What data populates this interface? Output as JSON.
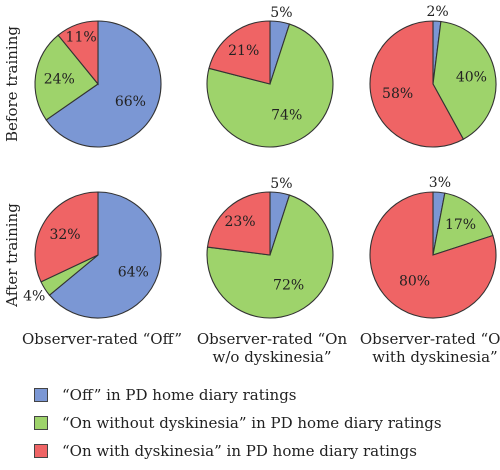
{
  "colors": {
    "off": "#7B97D4",
    "on_without": "#9ED36B",
    "on_with": "#EF6465",
    "stroke": "#333333"
  },
  "row_labels": [
    "Before training",
    "After training"
  ],
  "column_labels": [
    [
      "Observer-rated “Off”"
    ],
    [
      "Observer-rated “On",
      "w/o dyskinesia”"
    ],
    [
      "Observer-rated “On",
      "with dyskinesia”"
    ]
  ],
  "legend": [
    {
      "key": "off",
      "label": "“Off” in PD home diary ratings"
    },
    {
      "key": "on_without",
      "label": "“On without dyskinesia” in PD home diary ratings"
    },
    {
      "key": "on_with",
      "label": "“On with dyskinesia” in PD home diary ratings"
    }
  ],
  "chart_data": [
    {
      "type": "pie",
      "row": "Before training",
      "column": "Observer-rated “Off”",
      "slices": [
        {
          "key": "off",
          "value": 66,
          "label": "66%"
        },
        {
          "key": "on_without",
          "value": 24,
          "label": "24%"
        },
        {
          "key": "on_with",
          "value": 11,
          "label": "11%"
        }
      ]
    },
    {
      "type": "pie",
      "row": "Before training",
      "column": "Observer-rated “On w/o dyskinesia”",
      "slices": [
        {
          "key": "off",
          "value": 5,
          "label": "5%"
        },
        {
          "key": "on_without",
          "value": 74,
          "label": "74%"
        },
        {
          "key": "on_with",
          "value": 21,
          "label": "21%"
        }
      ]
    },
    {
      "type": "pie",
      "row": "Before training",
      "column": "Observer-rated “On with dyskinesia”",
      "slices": [
        {
          "key": "off",
          "value": 2,
          "label": "2%"
        },
        {
          "key": "on_without",
          "value": 40,
          "label": "40%"
        },
        {
          "key": "on_with",
          "value": 58,
          "label": "58%"
        }
      ]
    },
    {
      "type": "pie",
      "row": "After training",
      "column": "Observer-rated “Off”",
      "slices": [
        {
          "key": "off",
          "value": 64,
          "label": "64%"
        },
        {
          "key": "on_without",
          "value": 4,
          "label": "4%"
        },
        {
          "key": "on_with",
          "value": 32,
          "label": "32%"
        }
      ]
    },
    {
      "type": "pie",
      "row": "After training",
      "column": "Observer-rated “On w/o dyskinesia”",
      "slices": [
        {
          "key": "off",
          "value": 5,
          "label": "5%"
        },
        {
          "key": "on_without",
          "value": 72,
          "label": "72%"
        },
        {
          "key": "on_with",
          "value": 23,
          "label": "23%"
        }
      ]
    },
    {
      "type": "pie",
      "row": "After training",
      "column": "Observer-rated “On with dyskinesia”",
      "slices": [
        {
          "key": "off",
          "value": 3,
          "label": "3%"
        },
        {
          "key": "on_without",
          "value": 17,
          "label": "17%"
        },
        {
          "key": "on_with",
          "value": 80,
          "label": "80%"
        }
      ]
    }
  ]
}
